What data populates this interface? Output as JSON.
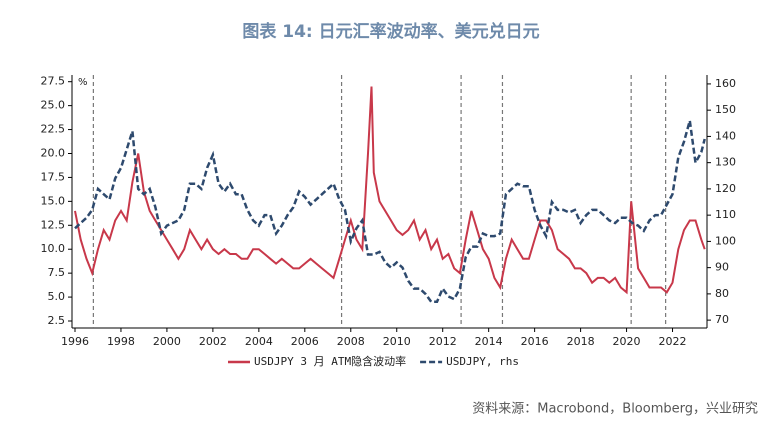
{
  "chart_data": {
    "type": "line",
    "title": "图表 14: 日元汇率波动率、美元兑日元",
    "y_unit": "%",
    "source": "资料来源：Macrobond，Bloomberg，兴业研究",
    "xlim": [
      1995.87,
      2023.5
    ],
    "xticks": [
      1996,
      1998,
      2000,
      2002,
      2004,
      2006,
      2008,
      2010,
      2012,
      2014,
      2016,
      2018,
      2020,
      2022
    ],
    "ylim": [
      1.77,
      28.2
    ],
    "yticks": [
      2.5,
      {
        "value": 5,
        "label": "5.0"
      },
      7.5,
      {
        "value": 10,
        "label": "10.0"
      },
      12.5,
      {
        "value": 15,
        "label": "15.0"
      },
      17.5,
      {
        "value": 20,
        "label": "20.0"
      },
      22.5,
      {
        "value": 25,
        "label": "25.0"
      },
      27.5
    ],
    "y2lim": [
      67,
      163.4
    ],
    "y2ticks": [
      70,
      80,
      90,
      100,
      110,
      120,
      130,
      140,
      150,
      160
    ],
    "vlines": [
      1996.8,
      2007.6,
      2012.8,
      2014.6,
      2020.2,
      2021.7
    ],
    "series": [
      {
        "name": "USDJPY 3 月 ATM隐含波动率",
        "color": "#c8384a",
        "dash": false,
        "x": [
          1996,
          1996.25,
          1996.5,
          1996.75,
          1997,
          1997.25,
          1997.5,
          1997.75,
          1998,
          1998.25,
          1998.5,
          1998.75,
          1999,
          1999.25,
          1999.5,
          1999.75,
          2000,
          2000.25,
          2000.5,
          2000.75,
          2001,
          2001.25,
          2001.5,
          2001.75,
          2002,
          2002.25,
          2002.5,
          2002.75,
          2003,
          2003.25,
          2003.5,
          2003.75,
          2004,
          2004.25,
          2004.5,
          2004.75,
          2005,
          2005.25,
          2005.5,
          2005.75,
          2006,
          2006.25,
          2006.5,
          2006.75,
          2007,
          2007.25,
          2007.5,
          2007.75,
          2008,
          2008.25,
          2008.5,
          2008.75,
          2008.9,
          2009,
          2009.25,
          2009.5,
          2009.75,
          2010,
          2010.25,
          2010.5,
          2010.75,
          2011,
          2011.25,
          2011.5,
          2011.75,
          2012,
          2012.25,
          2012.5,
          2012.75,
          2013,
          2013.25,
          2013.5,
          2013.75,
          2014,
          2014.25,
          2014.5,
          2014.75,
          2015,
          2015.25,
          2015.5,
          2015.75,
          2016,
          2016.25,
          2016.5,
          2016.75,
          2017,
          2017.25,
          2017.5,
          2017.75,
          2018,
          2018.25,
          2018.5,
          2018.75,
          2019,
          2019.25,
          2019.5,
          2019.75,
          2020,
          2020.2,
          2020.5,
          2020.75,
          2021,
          2021.25,
          2021.5,
          2021.75,
          2022,
          2022.25,
          2022.5,
          2022.75,
          2023,
          2023.25,
          2023.4
        ],
        "values": [
          14,
          11,
          9,
          7.5,
          10,
          12,
          11,
          13,
          14,
          13,
          17,
          20,
          16,
          14,
          13,
          12,
          11,
          10,
          9,
          10,
          12,
          11,
          10,
          11,
          10,
          9.5,
          10,
          9.5,
          9.5,
          9,
          9,
          10,
          10,
          9.5,
          9,
          8.5,
          9,
          8.5,
          8,
          8,
          8.5,
          9,
          8.5,
          8,
          7.5,
          7,
          9,
          11,
          13,
          11,
          10,
          20,
          27,
          18,
          15,
          14,
          13,
          12,
          11.5,
          12,
          13,
          11,
          12,
          10,
          11,
          9,
          9.5,
          8,
          7.5,
          11,
          14,
          12,
          10,
          9,
          7,
          6,
          9,
          11,
          10,
          9,
          9,
          11,
          13,
          13,
          12,
          10,
          9.5,
          9,
          8,
          8,
          7.5,
          6.5,
          7,
          7,
          6.5,
          7,
          6,
          5.5,
          15,
          8,
          7,
          6,
          6,
          6,
          5.5,
          6.5,
          10,
          12,
          13,
          13,
          11,
          10
        ]
      },
      {
        "name": "USDJPY, rhs",
        "color": "#2e4a6e",
        "dash": true,
        "axis": "y2",
        "x": [
          1996,
          1996.25,
          1996.5,
          1996.75,
          1997,
          1997.25,
          1997.5,
          1997.75,
          1998,
          1998.25,
          1998.5,
          1998.75,
          1999,
          1999.25,
          1999.5,
          1999.75,
          2000,
          2000.25,
          2000.5,
          2000.75,
          2001,
          2001.25,
          2001.5,
          2001.75,
          2002,
          2002.25,
          2002.5,
          2002.75,
          2003,
          2003.25,
          2003.5,
          2003.75,
          2004,
          2004.25,
          2004.5,
          2004.75,
          2005,
          2005.25,
          2005.5,
          2005.75,
          2006,
          2006.25,
          2006.5,
          2006.75,
          2007,
          2007.25,
          2007.5,
          2007.75,
          2008,
          2008.25,
          2008.5,
          2008.75,
          2009,
          2009.25,
          2009.5,
          2009.75,
          2010,
          2010.25,
          2010.5,
          2010.75,
          2011,
          2011.25,
          2011.5,
          2011.75,
          2012,
          2012.25,
          2012.5,
          2012.75,
          2013,
          2013.25,
          2013.5,
          2013.75,
          2014,
          2014.25,
          2014.5,
          2014.75,
          2015,
          2015.25,
          2015.5,
          2015.75,
          2016,
          2016.25,
          2016.5,
          2016.75,
          2017,
          2017.25,
          2017.5,
          2017.75,
          2018,
          2018.25,
          2018.5,
          2018.75,
          2019,
          2019.25,
          2019.5,
          2019.75,
          2020,
          2020.25,
          2020.5,
          2020.75,
          2021,
          2021.25,
          2021.5,
          2021.75,
          2022,
          2022.25,
          2022.5,
          2022.75,
          2023,
          2023.25,
          2023.4
        ],
        "values": [
          105,
          107,
          109,
          112,
          120,
          118,
          116,
          124,
          128,
          135,
          142,
          120,
          118,
          120,
          113,
          103,
          106,
          107,
          108,
          112,
          122,
          122,
          120,
          128,
          133,
          122,
          119,
          122,
          118,
          118,
          112,
          108,
          106,
          110,
          110,
          103,
          106,
          110,
          113,
          119,
          117,
          114,
          116,
          118,
          120,
          122,
          116,
          112,
          100,
          105,
          108,
          95,
          95,
          96,
          92,
          90,
          92,
          90,
          85,
          82,
          82,
          80,
          77,
          77,
          82,
          79,
          78,
          82,
          94,
          98,
          98,
          103,
          102,
          102,
          103,
          118,
          120,
          122,
          121,
          121,
          112,
          106,
          102,
          115,
          112,
          112,
          111,
          112,
          107,
          110,
          112,
          112,
          110,
          108,
          107,
          109,
          109,
          107,
          106,
          104,
          108,
          110,
          110,
          114,
          118,
          132,
          138,
          146,
          130,
          134,
          139
        ]
      }
    ]
  }
}
